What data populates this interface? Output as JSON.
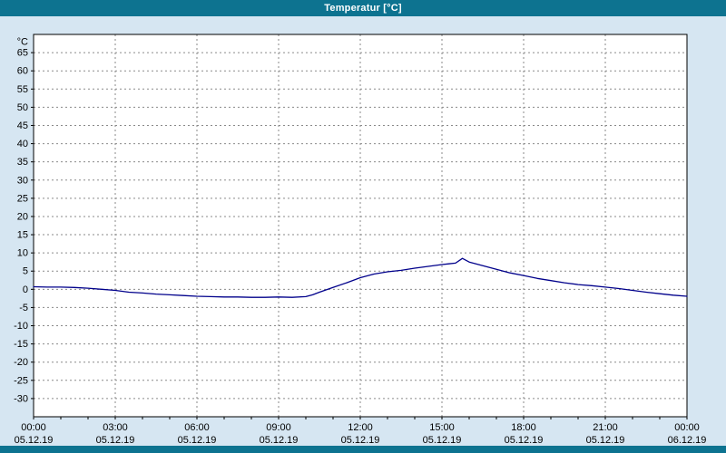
{
  "title": "Temperatur [°C]",
  "colors": {
    "titlebar": "#0d7390",
    "window_bg": "#d6e6f2",
    "plot_bg": "#ffffff",
    "grid": "#8a8a8a",
    "axis": "#000000",
    "line": "#00008b",
    "label_text": "#000000"
  },
  "chart_data": {
    "type": "line",
    "title": "Temperatur [°C]",
    "ylabel": "°C",
    "ylim": [
      -35,
      70
    ],
    "yticks": [
      -30,
      -25,
      -20,
      -15,
      -10,
      -5,
      0,
      5,
      10,
      15,
      20,
      25,
      30,
      35,
      40,
      45,
      50,
      55,
      60,
      65
    ],
    "x_hours_range": [
      0,
      24
    ],
    "x_ticks": [
      {
        "hour": 0,
        "time": "00:00",
        "date": "05.12.19"
      },
      {
        "hour": 3,
        "time": "03:00",
        "date": "05.12.19"
      },
      {
        "hour": 6,
        "time": "06:00",
        "date": "05.12.19"
      },
      {
        "hour": 9,
        "time": "09:00",
        "date": "05.12.19"
      },
      {
        "hour": 12,
        "time": "12:00",
        "date": "05.12.19"
      },
      {
        "hour": 15,
        "time": "15:00",
        "date": "05.12.19"
      },
      {
        "hour": 18,
        "time": "18:00",
        "date": "05.12.19"
      },
      {
        "hour": 21,
        "time": "21:00",
        "date": "05.12.19"
      },
      {
        "hour": 24,
        "time": "00:00",
        "date": "06.12.19"
      }
    ],
    "grid": "dashed",
    "legend": "none",
    "series": [
      {
        "name": "Temperatur",
        "color": "#00008b",
        "x": [
          0,
          0.5,
          1,
          1.5,
          2,
          2.5,
          3,
          3.5,
          4,
          4.5,
          5,
          5.5,
          6,
          6.5,
          7,
          7.5,
          8,
          8.5,
          9,
          9.5,
          10,
          10.25,
          10.5,
          11,
          11.5,
          12,
          12.5,
          13,
          13.5,
          14,
          14.5,
          15,
          15.25,
          15.5,
          15.75,
          16,
          16.25,
          16.5,
          17,
          17.5,
          18,
          18.5,
          19,
          19.5,
          20,
          20.5,
          21,
          21.5,
          22,
          22.5,
          23,
          23.5,
          24
        ],
        "y": [
          0.7,
          0.6,
          0.6,
          0.5,
          0.3,
          0.0,
          -0.3,
          -0.8,
          -1.0,
          -1.3,
          -1.5,
          -1.7,
          -1.9,
          -2.0,
          -2.1,
          -2.1,
          -2.2,
          -2.2,
          -2.1,
          -2.2,
          -2.0,
          -1.5,
          -0.8,
          0.5,
          1.8,
          3.2,
          4.2,
          4.8,
          5.2,
          5.8,
          6.3,
          6.8,
          7.0,
          7.2,
          8.5,
          7.5,
          7.0,
          6.5,
          5.5,
          4.5,
          3.8,
          3.0,
          2.4,
          1.8,
          1.3,
          1.0,
          0.6,
          0.2,
          -0.3,
          -0.8,
          -1.2,
          -1.6,
          -1.9
        ]
      }
    ]
  }
}
